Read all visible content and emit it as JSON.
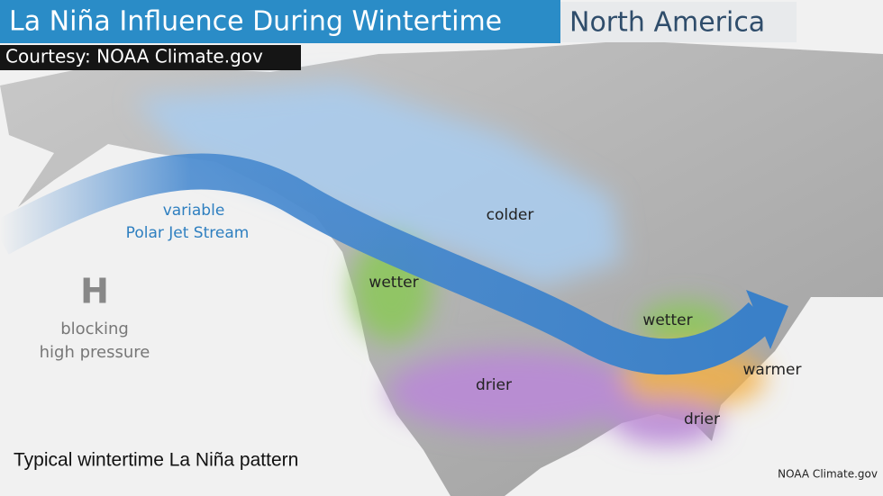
{
  "header": {
    "title": "La Niña Influence During Wintertime",
    "region": "North America",
    "courtesy": "Courtesy: NOAA Climate.gov"
  },
  "jet_stream": {
    "line1": "variable",
    "line2": "Polar Jet Stream"
  },
  "high_pressure": {
    "symbol": "H",
    "line1": "blocking",
    "line2": "high pressure"
  },
  "regions": [
    {
      "label": "colder"
    },
    {
      "label": "wetter"
    },
    {
      "label": "wetter"
    },
    {
      "label": "drier"
    },
    {
      "label": "warmer"
    },
    {
      "label": "drier"
    }
  ],
  "caption": "Typical wintertime La Niña pattern",
  "credit": "NOAA Climate.gov"
}
